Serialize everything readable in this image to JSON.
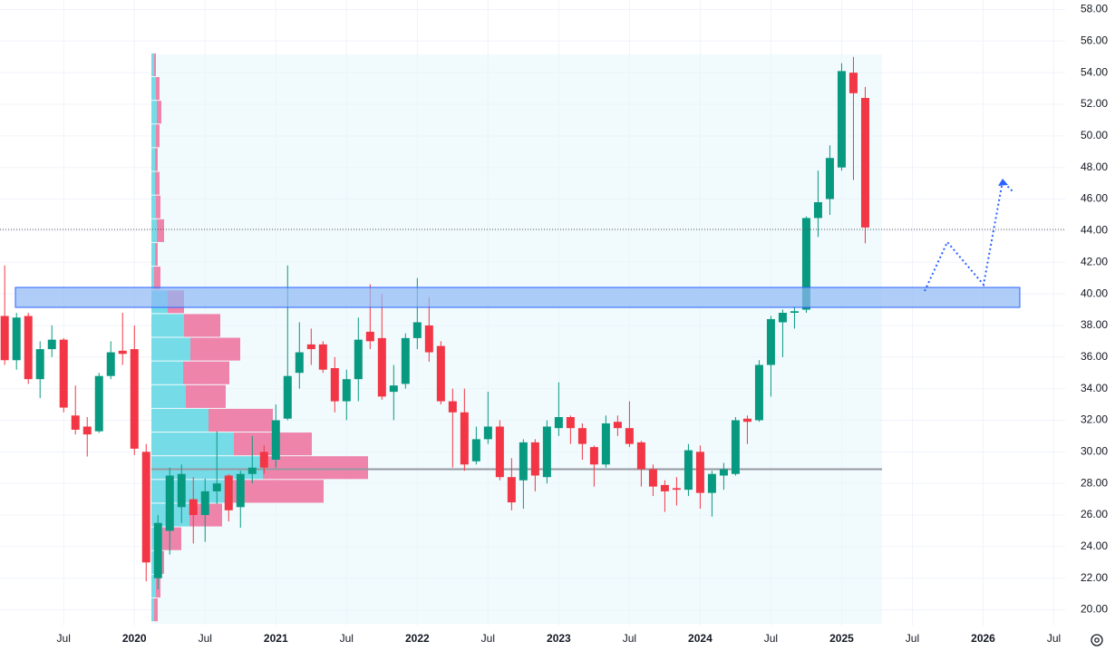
{
  "chart_data": {
    "type": "candlestick",
    "x": [
      2019.0833,
      2019.1667,
      2019.25,
      2019.3333,
      2019.4167,
      2019.5,
      2019.5833,
      2019.6667,
      2019.75,
      2019.8333,
      2019.9167,
      2020.0,
      2020.0833,
      2020.1667,
      2020.25,
      2020.3333,
      2020.4167,
      2020.5,
      2020.5833,
      2020.6667,
      2020.75,
      2020.8333,
      2020.9167,
      2021.0,
      2021.0833,
      2021.1667,
      2021.25,
      2021.3333,
      2021.4167,
      2021.5,
      2021.5833,
      2021.6667,
      2021.75,
      2021.8333,
      2021.9167,
      2022.0,
      2022.0833,
      2022.1667,
      2022.25,
      2022.3333,
      2022.4167,
      2022.5,
      2022.5833,
      2022.6667,
      2022.75,
      2022.8333,
      2022.9167,
      2023.0,
      2023.0833,
      2023.1667,
      2023.25,
      2023.3333,
      2023.4167,
      2023.5,
      2023.5833,
      2023.6667,
      2023.75,
      2023.8333,
      2023.9167,
      2024.0,
      2024.0833,
      2024.1667,
      2024.25,
      2024.3333,
      2024.4167,
      2024.5,
      2024.5833,
      2024.6667,
      2024.75,
      2024.8333,
      2024.9167,
      2025.0,
      2025.0833,
      2025.1667
    ],
    "open": [
      38.6,
      35.8,
      38.6,
      34.6,
      36.5,
      37.1,
      32.3,
      31.6,
      31.3,
      34.8,
      36.4,
      36.5,
      30.0,
      22.0,
      25.0,
      26.5,
      27.0,
      26.0,
      27.5,
      28.5,
      26.5,
      28.6,
      30.0,
      29.5,
      32.1,
      35.0,
      36.8,
      36.8,
      35.3,
      33.2,
      34.6,
      37.6,
      37.2,
      33.8,
      34.3,
      37.2,
      38.0,
      36.7,
      33.2,
      32.5,
      29.4,
      30.8,
      31.6,
      28.4,
      28.2,
      30.6,
      28.4,
      31.5,
      32.2,
      31.5,
      30.3,
      29.2,
      31.9,
      31.5,
      30.6,
      28.9,
      27.9,
      27.7,
      27.6,
      30.0,
      27.4,
      28.5,
      28.6,
      32.1,
      32.0,
      35.5,
      38.2,
      38.8,
      39.0,
      44.8,
      46.0,
      48.0,
      54.0,
      52.4
    ],
    "high": [
      41.8,
      38.8,
      38.8,
      37.0,
      38.0,
      37.2,
      34.2,
      32.2,
      35.0,
      37.0,
      38.8,
      38.0,
      30.5,
      26.0,
      29.0,
      29.2,
      28.4,
      28.3,
      31.3,
      28.6,
      28.8,
      31.0,
      30.4,
      33.0,
      41.8,
      38.2,
      37.8,
      37.0,
      36.0,
      35.2,
      38.5,
      40.6,
      40.0,
      35.5,
      37.5,
      41.0,
      39.8,
      37.0,
      34.0,
      34.0,
      31.6,
      33.8,
      32.0,
      29.6,
      30.8,
      30.8,
      32.0,
      34.4,
      32.3,
      31.8,
      30.4,
      32.3,
      32.3,
      33.2,
      30.7,
      29.2,
      28.2,
      28.4,
      30.5,
      30.4,
      28.8,
      29.3,
      32.2,
      32.3,
      35.8,
      38.6,
      39.0,
      39.2,
      44.9,
      47.8,
      49.4,
      54.6,
      55.0,
      53.1
    ],
    "low": [
      35.5,
      35.2,
      34.3,
      33.4,
      36.0,
      32.5,
      31.1,
      29.7,
      31.2,
      34.6,
      35.5,
      29.8,
      21.8,
      21.3,
      23.5,
      25.5,
      24.2,
      24.3,
      26.7,
      25.6,
      25.2,
      28.0,
      28.6,
      29.0,
      32.0,
      34.0,
      35.5,
      35.0,
      32.5,
      32.0,
      33.2,
      36.5,
      33.3,
      32.0,
      34.0,
      36.5,
      35.7,
      33.0,
      29.0,
      28.8,
      29.2,
      30.5,
      28.2,
      26.3,
      26.4,
      27.5,
      28.0,
      31.0,
      30.5,
      29.5,
      27.8,
      29.0,
      31.0,
      30.3,
      27.8,
      27.2,
      26.2,
      26.6,
      27.2,
      26.4,
      25.9,
      27.6,
      28.5,
      30.5,
      31.9,
      33.5,
      36.0,
      37.8,
      38.8,
      43.6,
      45.0,
      47.8,
      47.2,
      43.2
    ],
    "close": [
      35.8,
      38.5,
      34.6,
      36.5,
      37.1,
      32.8,
      31.4,
      31.1,
      34.8,
      36.3,
      36.2,
      30.2,
      23.0,
      25.5,
      28.5,
      28.6,
      26.0,
      27.5,
      28.0,
      26.3,
      28.6,
      29.0,
      29.0,
      32.0,
      34.8,
      36.3,
      36.5,
      35.2,
      33.2,
      34.6,
      37.1,
      37.0,
      33.5,
      34.2,
      37.2,
      38.2,
      36.3,
      33.2,
      32.5,
      29.2,
      30.8,
      31.6,
      28.4,
      26.8,
      30.6,
      28.5,
      31.6,
      32.2,
      31.5,
      30.5,
      29.2,
      31.8,
      31.5,
      30.5,
      28.9,
      27.8,
      27.5,
      27.6,
      30.1,
      27.4,
      28.6,
      28.9,
      32.0,
      31.9,
      35.5,
      38.4,
      38.8,
      38.9,
      44.8,
      45.8,
      48.6,
      54.1,
      52.7,
      44.2
    ],
    "up_color": "#089981",
    "down_color": "#f23645",
    "xlim": [
      2019.05,
      2026.58
    ],
    "xticks": [
      {
        "value": 2019.5,
        "label": "Jul"
      },
      {
        "value": 2020,
        "label": "2020"
      },
      {
        "value": 2020.5,
        "label": "Jul"
      },
      {
        "value": 2021,
        "label": "2021"
      },
      {
        "value": 2021.5,
        "label": "Jul"
      },
      {
        "value": 2022,
        "label": "2022"
      },
      {
        "value": 2022.5,
        "label": "Jul"
      },
      {
        "value": 2023,
        "label": "2023"
      },
      {
        "value": 2023.5,
        "label": "Jul"
      },
      {
        "value": 2024,
        "label": "2024"
      },
      {
        "value": 2024.5,
        "label": "Jul"
      },
      {
        "value": 2025,
        "label": "2025"
      },
      {
        "value": 2025.5,
        "label": "Jul"
      },
      {
        "value": 2026,
        "label": "2026"
      },
      {
        "value": 2026.5,
        "label": "Jul"
      }
    ],
    "ylim": [
      19,
      58.6
    ],
    "yticks": [
      {
        "value": 20,
        "label": "20.00"
      },
      {
        "value": 22,
        "label": "22.00"
      },
      {
        "value": 24,
        "label": "24.00"
      },
      {
        "value": 26,
        "label": "26.00"
      },
      {
        "value": 28,
        "label": "28.00"
      },
      {
        "value": 30,
        "label": "30.00"
      },
      {
        "value": 32,
        "label": "32.00"
      },
      {
        "value": 34,
        "label": "34.00"
      },
      {
        "value": 36,
        "label": "36.00"
      },
      {
        "value": 38,
        "label": "38.00"
      },
      {
        "value": 40,
        "label": "40.00"
      },
      {
        "value": 42,
        "label": "42.00"
      },
      {
        "value": 44,
        "label": "44.00"
      },
      {
        "value": 46,
        "label": "46.00"
      },
      {
        "value": 48,
        "label": "48.00"
      },
      {
        "value": 50,
        "label": "50.00"
      },
      {
        "value": 52,
        "label": "52.00"
      },
      {
        "value": 54,
        "label": "54.00"
      },
      {
        "value": 56,
        "label": "56.00"
      },
      {
        "value": 58,
        "label": "58.00"
      }
    ],
    "grid": true,
    "volume_profile": {
      "bins": [
        19.25,
        20.75,
        22.25,
        23.75,
        25.25,
        26.75,
        28.25,
        29.75,
        31.25,
        32.75,
        34.25,
        35.75,
        37.25,
        38.75,
        40.25,
        41.75,
        43.25,
        44.75,
        46.25,
        47.75,
        49.25,
        50.75,
        52.25,
        53.75,
        55.25
      ],
      "up": [
        3,
        5,
        6,
        12,
        42,
        90,
        123,
        91,
        63,
        38,
        35,
        43,
        36,
        18,
        3,
        4,
        6,
        5,
        4,
        4,
        5,
        6,
        5,
        3
      ],
      "down": [
        4,
        5,
        8,
        21,
        36,
        100,
        116,
        86,
        71,
        44,
        51,
        55,
        40,
        18,
        7,
        3,
        8,
        5,
        5,
        3,
        4,
        5,
        4,
        2
      ],
      "up_color": "#5fd6e3",
      "down_color": "#ef6f9c",
      "poc": 28.9
    }
  }
}
